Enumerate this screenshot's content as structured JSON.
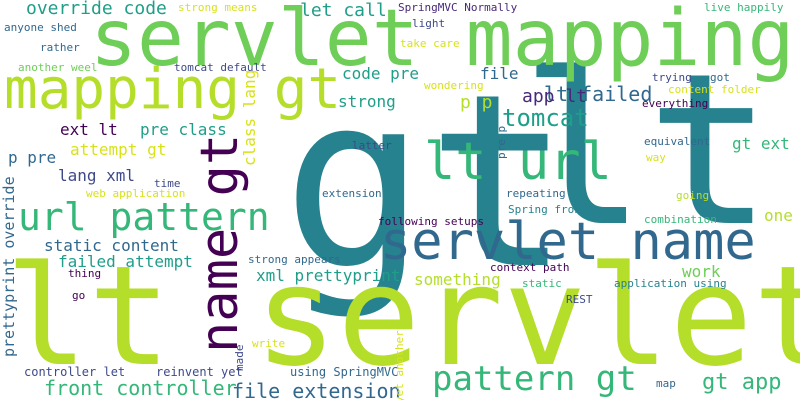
{
  "colors": {
    "background": "#ffffff",
    "dark_purple": "#440154",
    "purple": "#482878",
    "indigo": "#3e4989",
    "blue": "#31688e",
    "teal_blue": "#26828e",
    "teal": "#1f9e89",
    "green": "#35b779",
    "light_green": "#6ece58",
    "lime": "#b5de2b",
    "yellow": "#d8e219"
  },
  "words": [
    {
      "text": "gt",
      "color": "#26828e",
      "vertical": false
    },
    {
      "text": "lt",
      "color": "#26828e",
      "vertical": false
    },
    {
      "text": "lt servlet",
      "color": "#b5de2b",
      "vertical": false
    },
    {
      "text": "servlet mapping",
      "color": "#6ece58",
      "vertical": false
    },
    {
      "text": "servlet name",
      "color": "#31688e",
      "vertical": false
    },
    {
      "text": "mapping gt",
      "color": "#b5de2b",
      "vertical": false
    },
    {
      "text": "lt url",
      "color": "#35b779",
      "vertical": false
    },
    {
      "text": "name gt",
      "color": "#440154",
      "vertical": true
    },
    {
      "text": "url pattern",
      "color": "#35b779",
      "vertical": false
    },
    {
      "text": "pattern gt",
      "color": "#35b779",
      "vertical": false
    },
    {
      "text": "gt app",
      "color": "#35b779",
      "vertical": false
    },
    {
      "text": "tomcat",
      "color": "#1f9e89",
      "vertical": false
    },
    {
      "text": "file extension",
      "color": "#31688e",
      "vertical": false
    },
    {
      "text": "front controller",
      "color": "#35b779",
      "vertical": false
    },
    {
      "text": "lt failed",
      "color": "#31688e",
      "vertical": false
    },
    {
      "text": "override code",
      "color": "#1f9e89",
      "vertical": false
    },
    {
      "text": "let call",
      "color": "#1f9e89",
      "vertical": false
    },
    {
      "text": "code pre",
      "color": "#1f9e89",
      "vertical": false
    },
    {
      "text": "file",
      "color": "#31688e",
      "vertical": false
    },
    {
      "text": "app lt",
      "color": "#482878",
      "vertical": false
    },
    {
      "text": "strong",
      "color": "#1f9e89",
      "vertical": false
    },
    {
      "text": "p p",
      "color": "#b5de2b",
      "vertical": false
    },
    {
      "text": "ext lt",
      "color": "#440154",
      "vertical": false
    },
    {
      "text": "pre class",
      "color": "#1f9e89",
      "vertical": false
    },
    {
      "text": "attempt gt",
      "color": "#d8e219",
      "vertical": false
    },
    {
      "text": "gt ext",
      "color": "#35b779",
      "vertical": false
    },
    {
      "text": "p pre",
      "color": "#31688e",
      "vertical": false
    },
    {
      "text": "lang xml",
      "color": "#3e4989",
      "vertical": false
    },
    {
      "text": "static content",
      "color": "#31688e",
      "vertical": false
    },
    {
      "text": "failed attempt",
      "color": "#1f9e89",
      "vertical": false
    },
    {
      "text": "xml prettyprint",
      "color": "#1f9e89",
      "vertical": false
    },
    {
      "text": "something",
      "color": "#b5de2b",
      "vertical": false
    },
    {
      "text": "work",
      "color": "#6ece58",
      "vertical": false
    },
    {
      "text": "one",
      "color": "#b5de2b",
      "vertical": false
    },
    {
      "text": "class lang",
      "color": "#d8e219",
      "vertical": true
    },
    {
      "text": "prettyprint override",
      "color": "#31688e",
      "vertical": true
    },
    {
      "text": "controller let",
      "color": "#3e4989",
      "vertical": false
    },
    {
      "text": "reinvent yet",
      "color": "#3e4989",
      "vertical": false
    },
    {
      "text": "using SpringMVC",
      "color": "#31688e",
      "vertical": false
    },
    {
      "text": "strong means",
      "color": "#d8e219",
      "vertical": false
    },
    {
      "text": "SpringMVC Normally",
      "color": "#482878",
      "vertical": false
    },
    {
      "text": "anyone shed",
      "color": "#31688e",
      "vertical": false
    },
    {
      "text": "rather",
      "color": "#31688e",
      "vertical": false
    },
    {
      "text": "another weel",
      "color": "#6ece58",
      "vertical": false
    },
    {
      "text": "tomcat default",
      "color": "#3e4989",
      "vertical": false
    },
    {
      "text": "light",
      "color": "#3e4989",
      "vertical": false
    },
    {
      "text": "take care",
      "color": "#d8e219",
      "vertical": false
    },
    {
      "text": "live happily",
      "color": "#35b779",
      "vertical": false
    },
    {
      "text": "trying",
      "color": "#3e4989",
      "vertical": false
    },
    {
      "text": "got",
      "color": "#31688e",
      "vertical": false
    },
    {
      "text": "wondering",
      "color": "#d8e219",
      "vertical": false
    },
    {
      "text": "content folder",
      "color": "#d8e219",
      "vertical": false
    },
    {
      "text": "everything",
      "color": "#440154",
      "vertical": false
    },
    {
      "text": "equivalent",
      "color": "#31688e",
      "vertical": false
    },
    {
      "text": "latter",
      "color": "#3e4989",
      "vertical": false
    },
    {
      "text": "way",
      "color": "#d8e219",
      "vertical": false
    },
    {
      "text": "time",
      "color": "#3e4989",
      "vertical": false
    },
    {
      "text": "web application",
      "color": "#d8e219",
      "vertical": false
    },
    {
      "text": "extension",
      "color": "#31688e",
      "vertical": false
    },
    {
      "text": "repeating",
      "color": "#31688e",
      "vertical": false
    },
    {
      "text": "pre p",
      "color": "#31688e",
      "vertical": true
    },
    {
      "text": "going",
      "color": "#b5de2b",
      "vertical": false
    },
    {
      "text": "following setups",
      "color": "#440154",
      "vertical": false
    },
    {
      "text": "Spring front",
      "color": "#26828e",
      "vertical": false
    },
    {
      "text": "combination",
      "color": "#35b779",
      "vertical": false
    },
    {
      "text": "strong appears",
      "color": "#31688e",
      "vertical": false
    },
    {
      "text": "context path",
      "color": "#440154",
      "vertical": false
    },
    {
      "text": "thing",
      "color": "#440154",
      "vertical": false
    },
    {
      "text": "static",
      "color": "#35b779",
      "vertical": false
    },
    {
      "text": "application using",
      "color": "#26828e",
      "vertical": false
    },
    {
      "text": "REST",
      "color": "#3e4989",
      "vertical": false
    },
    {
      "text": "go",
      "color": "#440154",
      "vertical": false
    },
    {
      "text": "write",
      "color": "#d8e219",
      "vertical": false
    },
    {
      "text": "made",
      "color": "#3e4989",
      "vertical": true
    },
    {
      "text": "yet another",
      "color": "#d8e219",
      "vertical": true
    },
    {
      "text": "map",
      "color": "#31688e",
      "vertical": false
    }
  ]
}
